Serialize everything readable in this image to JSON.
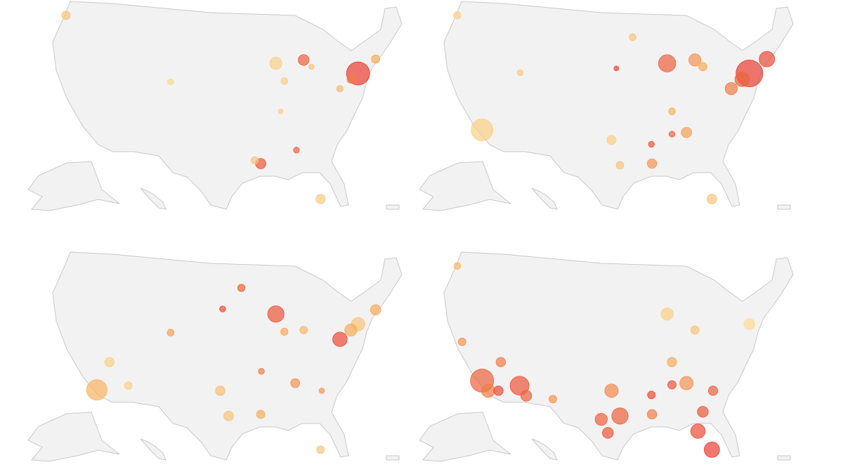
{
  "color_scale": [
    "#fde7a6",
    "#f8ad5c",
    "#e8322c"
  ],
  "panels": [
    {
      "bubbles": [
        {
          "lon": -74.0,
          "lat": 40.7,
          "cases": 900,
          "rate": 0.95
        },
        {
          "lon": -71.1,
          "lat": 42.4,
          "cases": 120,
          "rate": 0.5
        },
        {
          "lon": -83.0,
          "lat": 42.3,
          "cases": 200,
          "rate": 0.8
        },
        {
          "lon": -87.6,
          "lat": 41.9,
          "cases": 250,
          "rate": 0.2
        },
        {
          "lon": -90.1,
          "lat": 30.0,
          "cases": 180,
          "rate": 0.85
        },
        {
          "lon": -122.3,
          "lat": 47.6,
          "cases": 120,
          "rate": 0.3
        },
        {
          "lon": -80.2,
          "lat": 25.8,
          "cases": 150,
          "rate": 0.25
        },
        {
          "lon": -84.2,
          "lat": 31.6,
          "cases": 60,
          "rate": 0.8
        },
        {
          "lon": -86.2,
          "lat": 39.8,
          "cases": 80,
          "rate": 0.2
        },
        {
          "lon": -105.0,
          "lat": 39.7,
          "cases": 60,
          "rate": 0.15
        },
        {
          "lon": -75.2,
          "lat": 40.0,
          "cases": 100,
          "rate": 0.7
        },
        {
          "lon": -77.0,
          "lat": 38.9,
          "cases": 70,
          "rate": 0.4
        },
        {
          "lon": -91.1,
          "lat": 30.4,
          "cases": 90,
          "rate": 0.3
        },
        {
          "lon": -86.8,
          "lat": 36.2,
          "cases": 40,
          "rate": 0.2
        },
        {
          "lon": -81.7,
          "lat": 41.5,
          "cases": 50,
          "rate": 0.3
        }
      ]
    },
    {
      "bubbles": [
        {
          "lon": -74.0,
          "lat": 40.7,
          "cases": 1200,
          "rate": 0.95
        },
        {
          "lon": -71.1,
          "lat": 42.4,
          "cases": 400,
          "rate": 0.9
        },
        {
          "lon": -75.2,
          "lat": 40.0,
          "cases": 350,
          "rate": 0.8
        },
        {
          "lon": -87.6,
          "lat": 41.9,
          "cases": 500,
          "rate": 0.8
        },
        {
          "lon": -83.0,
          "lat": 42.3,
          "cases": 250,
          "rate": 0.6
        },
        {
          "lon": -77.0,
          "lat": 38.9,
          "cases": 250,
          "rate": 0.7
        },
        {
          "lon": -118.2,
          "lat": 34.0,
          "cases": 800,
          "rate": 0.2
        },
        {
          "lon": -90.1,
          "lat": 30.0,
          "cases": 150,
          "rate": 0.6
        },
        {
          "lon": -84.4,
          "lat": 33.7,
          "cases": 180,
          "rate": 0.55
        },
        {
          "lon": -80.2,
          "lat": 25.8,
          "cases": 160,
          "rate": 0.3
        },
        {
          "lon": -96.8,
          "lat": 32.8,
          "cases": 140,
          "rate": 0.2
        },
        {
          "lon": -95.4,
          "lat": 29.8,
          "cases": 100,
          "rate": 0.3
        },
        {
          "lon": -90.2,
          "lat": 32.3,
          "cases": 60,
          "rate": 0.85
        },
        {
          "lon": -86.8,
          "lat": 33.5,
          "cases": 60,
          "rate": 0.8
        },
        {
          "lon": -96.0,
          "lat": 41.3,
          "cases": 40,
          "rate": 0.9
        },
        {
          "lon": -93.3,
          "lat": 45.0,
          "cases": 80,
          "rate": 0.3
        },
        {
          "lon": -122.3,
          "lat": 47.6,
          "cases": 90,
          "rate": 0.2
        },
        {
          "lon": -111.9,
          "lat": 40.8,
          "cases": 60,
          "rate": 0.25
        },
        {
          "lon": -81.7,
          "lat": 41.5,
          "cases": 120,
          "rate": 0.5
        },
        {
          "lon": -86.8,
          "lat": 36.2,
          "cases": 80,
          "rate": 0.45
        }
      ]
    },
    {
      "bubbles": [
        {
          "lon": -117.2,
          "lat": 32.9,
          "cases": 700,
          "rate": 0.45
        },
        {
          "lon": -87.6,
          "lat": 41.9,
          "cases": 450,
          "rate": 0.85
        },
        {
          "lon": -77.0,
          "lat": 38.9,
          "cases": 350,
          "rate": 0.9
        },
        {
          "lon": -74.0,
          "lat": 40.7,
          "cases": 300,
          "rate": 0.3
        },
        {
          "lon": -71.1,
          "lat": 42.4,
          "cases": 180,
          "rate": 0.5
        },
        {
          "lon": -75.2,
          "lat": 40.0,
          "cases": 250,
          "rate": 0.5
        },
        {
          "lon": -93.3,
          "lat": 45.0,
          "cases": 90,
          "rate": 0.8
        },
        {
          "lon": -96.4,
          "lat": 42.5,
          "cases": 60,
          "rate": 0.9
        },
        {
          "lon": -115.1,
          "lat": 36.2,
          "cases": 150,
          "rate": 0.2
        },
        {
          "lon": -112.0,
          "lat": 33.4,
          "cases": 100,
          "rate": 0.2
        },
        {
          "lon": -95.4,
          "lat": 29.8,
          "cases": 160,
          "rate": 0.3
        },
        {
          "lon": -96.8,
          "lat": 32.8,
          "cases": 150,
          "rate": 0.35
        },
        {
          "lon": -90.1,
          "lat": 30.0,
          "cases": 120,
          "rate": 0.5
        },
        {
          "lon": -84.4,
          "lat": 33.7,
          "cases": 140,
          "rate": 0.6
        },
        {
          "lon": -90.0,
          "lat": 35.1,
          "cases": 60,
          "rate": 0.7
        },
        {
          "lon": -80.2,
          "lat": 25.8,
          "cases": 100,
          "rate": 0.3
        },
        {
          "lon": -105.0,
          "lat": 39.7,
          "cases": 80,
          "rate": 0.55
        },
        {
          "lon": -83.0,
          "lat": 40.0,
          "cases": 100,
          "rate": 0.4
        },
        {
          "lon": -86.2,
          "lat": 39.8,
          "cases": 90,
          "rate": 0.5
        },
        {
          "lon": -80.0,
          "lat": 32.8,
          "cases": 50,
          "rate": 0.6
        }
      ]
    },
    {
      "bubbles": [
        {
          "lon": -118.2,
          "lat": 34.0,
          "cases": 900,
          "rate": 0.8
        },
        {
          "lon": -117.2,
          "lat": 32.8,
          "cases": 300,
          "rate": 0.7
        },
        {
          "lon": -112.0,
          "lat": 33.4,
          "cases": 600,
          "rate": 0.85
        },
        {
          "lon": -110.9,
          "lat": 32.2,
          "cases": 200,
          "rate": 0.8
        },
        {
          "lon": -115.5,
          "lat": 32.8,
          "cases": 150,
          "rate": 0.9
        },
        {
          "lon": -80.2,
          "lat": 25.8,
          "cases": 400,
          "rate": 0.95
        },
        {
          "lon": -82.5,
          "lat": 28.0,
          "cases": 350,
          "rate": 0.9
        },
        {
          "lon": -81.7,
          "lat": 30.3,
          "cases": 200,
          "rate": 0.85
        },
        {
          "lon": -95.4,
          "lat": 29.8,
          "cases": 450,
          "rate": 0.8
        },
        {
          "lon": -98.5,
          "lat": 29.4,
          "cases": 250,
          "rate": 0.8
        },
        {
          "lon": -97.4,
          "lat": 27.8,
          "cases": 200,
          "rate": 0.85
        },
        {
          "lon": -96.8,
          "lat": 32.8,
          "cases": 300,
          "rate": 0.65
        },
        {
          "lon": -84.4,
          "lat": 33.7,
          "cases": 300,
          "rate": 0.6
        },
        {
          "lon": -80.0,
          "lat": 32.8,
          "cases": 150,
          "rate": 0.8
        },
        {
          "lon": -90.1,
          "lat": 30.0,
          "cases": 150,
          "rate": 0.7
        },
        {
          "lon": -86.8,
          "lat": 33.5,
          "cases": 120,
          "rate": 0.85
        },
        {
          "lon": -90.2,
          "lat": 32.3,
          "cases": 100,
          "rate": 0.9
        },
        {
          "lon": -86.8,
          "lat": 36.2,
          "cases": 150,
          "rate": 0.5
        },
        {
          "lon": -74.0,
          "lat": 40.7,
          "cases": 200,
          "rate": 0.1
        },
        {
          "lon": -87.6,
          "lat": 41.9,
          "cases": 250,
          "rate": 0.2
        },
        {
          "lon": -122.3,
          "lat": 47.6,
          "cases": 80,
          "rate": 0.4
        },
        {
          "lon": -121.5,
          "lat": 38.6,
          "cases": 100,
          "rate": 0.6
        },
        {
          "lon": -115.1,
          "lat": 36.2,
          "cases": 150,
          "rate": 0.7
        },
        {
          "lon": -106.5,
          "lat": 31.8,
          "cases": 100,
          "rate": 0.6
        },
        {
          "lon": -83.0,
          "lat": 40.0,
          "cases": 120,
          "rate": 0.3
        }
      ]
    }
  ]
}
